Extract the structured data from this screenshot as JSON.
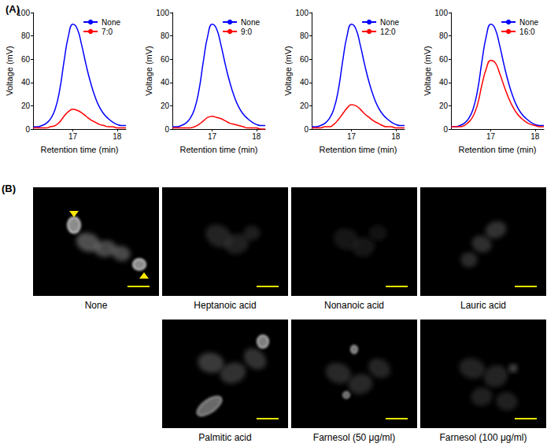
{
  "panel_labels": [
    "(A)",
    "(B)"
  ],
  "chart_data": [
    {
      "type": "line",
      "x_label": "Retention time (min)",
      "y_label": "Voltage (mV)",
      "x": [
        16.1,
        16.2,
        16.3,
        16.4,
        16.5,
        16.6,
        16.7,
        16.8,
        16.9,
        17.0,
        17.1,
        17.2,
        17.3,
        17.4,
        17.5,
        17.6,
        17.7,
        17.8,
        17.9,
        18.0,
        18.1,
        18.2
      ],
      "xlim": [
        16.1,
        18.2
      ],
      "xticks": [
        17,
        18
      ],
      "ylim": [
        0,
        100
      ],
      "yticks": [
        0,
        20,
        40,
        60,
        80,
        100
      ],
      "legend": "upper right",
      "grid": false,
      "series": [
        {
          "name": "None",
          "color": "#0000ff",
          "values": [
            2,
            2,
            3,
            5,
            9,
            17,
            33,
            58,
            80,
            90,
            86,
            72,
            55,
            40,
            28,
            19,
            13,
            9,
            6,
            4,
            3,
            3
          ]
        },
        {
          "name": "7:0",
          "color": "#ff0000",
          "values": [
            1,
            1,
            1,
            1,
            2,
            3,
            6,
            11,
            15,
            17,
            16,
            14,
            11,
            8,
            6,
            4,
            3,
            2,
            2,
            1,
            1,
            1
          ]
        }
      ]
    },
    {
      "type": "line",
      "x_label": "Retention time (min)",
      "y_label": "Voltage (mV)",
      "x": [
        16.1,
        16.2,
        16.3,
        16.4,
        16.5,
        16.6,
        16.7,
        16.8,
        16.9,
        17.0,
        17.1,
        17.2,
        17.3,
        17.4,
        17.5,
        17.6,
        17.7,
        17.8,
        17.9,
        18.0,
        18.1,
        18.2
      ],
      "xlim": [
        16.1,
        18.2
      ],
      "xticks": [
        17,
        18
      ],
      "ylim": [
        0,
        100
      ],
      "yticks": [
        0,
        20,
        40,
        60,
        80,
        100
      ],
      "legend": "upper right",
      "grid": false,
      "series": [
        {
          "name": "None",
          "color": "#0000ff",
          "values": [
            2,
            2,
            3,
            5,
            9,
            17,
            33,
            58,
            80,
            90,
            86,
            72,
            55,
            40,
            28,
            19,
            13,
            9,
            6,
            4,
            3,
            3
          ]
        },
        {
          "name": "9:0",
          "color": "#ff0000",
          "values": [
            1,
            1,
            1,
            1,
            1,
            2,
            4,
            7,
            10,
            11,
            10,
            9,
            7,
            5,
            4,
            3,
            2,
            1,
            1,
            1,
            0,
            0
          ]
        }
      ]
    },
    {
      "type": "line",
      "x_label": "Retention time (min)",
      "y_label": "Voltage (mV)",
      "x": [
        16.1,
        16.2,
        16.3,
        16.4,
        16.5,
        16.6,
        16.7,
        16.8,
        16.9,
        17.0,
        17.1,
        17.2,
        17.3,
        17.4,
        17.5,
        17.6,
        17.7,
        17.8,
        17.9,
        18.0,
        18.1,
        18.2
      ],
      "xlim": [
        16.1,
        18.2
      ],
      "xticks": [
        17,
        18
      ],
      "ylim": [
        0,
        100
      ],
      "yticks": [
        0,
        20,
        40,
        60,
        80,
        100
      ],
      "legend": "upper right",
      "grid": false,
      "series": [
        {
          "name": "None",
          "color": "#0000ff",
          "values": [
            2,
            2,
            3,
            5,
            9,
            17,
            33,
            58,
            80,
            90,
            86,
            72,
            55,
            40,
            28,
            19,
            13,
            9,
            6,
            4,
            3,
            3
          ]
        },
        {
          "name": "12:0",
          "color": "#ff0000",
          "values": [
            1,
            1,
            1,
            2,
            2,
            4,
            8,
            13,
            18,
            21,
            20,
            17,
            13,
            10,
            7,
            5,
            3,
            2,
            2,
            1,
            1,
            1
          ]
        }
      ]
    },
    {
      "type": "line",
      "x_label": "Retention time (min)",
      "y_label": "Voltage (mV)",
      "x": [
        16.1,
        16.2,
        16.3,
        16.4,
        16.5,
        16.6,
        16.7,
        16.8,
        16.9,
        17.0,
        17.1,
        17.2,
        17.3,
        17.4,
        17.5,
        17.6,
        17.7,
        17.8,
        17.9,
        18.0,
        18.1,
        18.2
      ],
      "xlim": [
        16.1,
        18.2
      ],
      "xticks": [
        17,
        18
      ],
      "ylim": [
        0,
        100
      ],
      "yticks": [
        0,
        20,
        40,
        60,
        80,
        100
      ],
      "legend": "upper right",
      "grid": false,
      "series": [
        {
          "name": "None",
          "color": "#0000ff",
          "values": [
            2,
            2,
            3,
            5,
            9,
            17,
            33,
            58,
            80,
            90,
            86,
            72,
            55,
            40,
            28,
            19,
            13,
            9,
            6,
            4,
            3,
            3
          ]
        },
        {
          "name": "16:0",
          "color": "#ff0000",
          "values": [
            2,
            2,
            2,
            3,
            6,
            11,
            21,
            38,
            52,
            59,
            57,
            48,
            37,
            27,
            19,
            13,
            9,
            6,
            4,
            3,
            2,
            2
          ]
        }
      ]
    }
  ],
  "micrographs": {
    "captions": [
      "None",
      "Heptanoic acid",
      "Nonanoic acid",
      "Lauric acid",
      "Palmitic acid",
      "Farnesol (50 μg/ml)",
      "Farnesol (100 μg/ml)"
    ]
  }
}
